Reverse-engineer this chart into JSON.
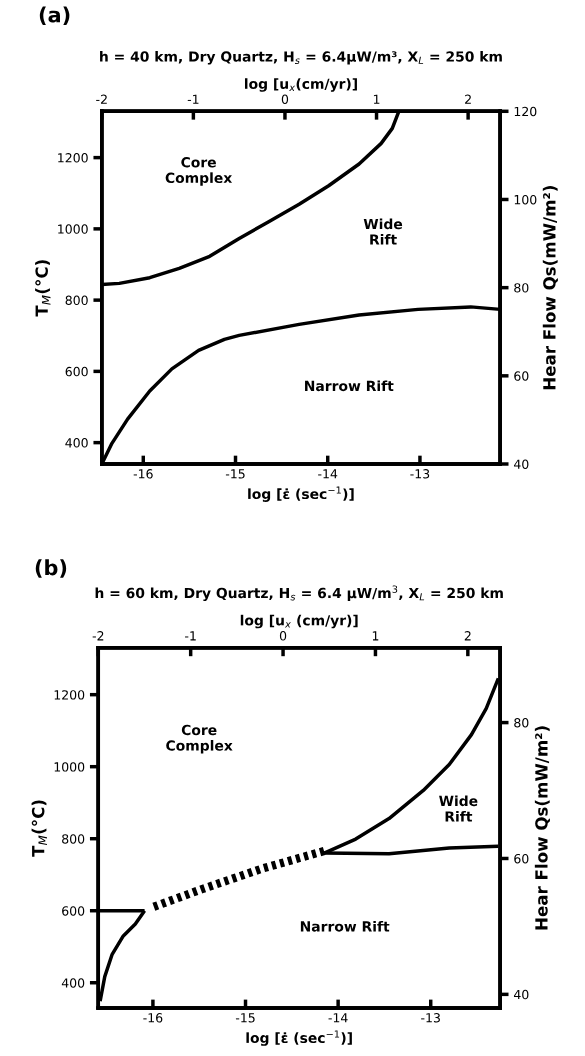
{
  "chart_data": [
    {
      "type": "line",
      "title": "h = 40 km, Dry Quartz, H$_{s}$ = 6.4μW/m³, X$_{L}$ = 250 km",
      "xlabel": "log [ε̇ (sec$^{−1}$)]",
      "x2label": "log [u$_{x}$(cm/yr)]",
      "ylabel": "T$_{M}$(°C)",
      "y2label": "Hear Flow Qs(mW/m²)",
      "xlim": [
        -16.45,
        -12.13
      ],
      "xticks": [
        -16,
        -15,
        -14,
        -13
      ],
      "x2lim": [
        -2,
        2.35
      ],
      "x2ticks": [
        -2,
        -1,
        0,
        1,
        2
      ],
      "ylim": [
        340,
        1330
      ],
      "yticks": [
        400,
        600,
        800,
        1000,
        1200
      ],
      "y2lim": [
        40,
        120
      ],
      "y2ticks": [
        40,
        60,
        80,
        100,
        120
      ],
      "series": [
        {
          "color": "#000000",
          "line_style": "solid",
          "x": [
            -16.45,
            -16.26,
            -15.93,
            -15.61,
            -15.28,
            -14.96,
            -14.64,
            -14.31,
            -13.99,
            -13.66,
            -13.42,
            -13.3,
            -13.23
          ],
          "values": [
            844,
            847,
            863,
            889,
            923,
            973,
            1020,
            1069,
            1121,
            1182,
            1240,
            1282,
            1329
          ]
        },
        {
          "color": "#000000",
          "line_style": "solid",
          "x": [
            -16.45,
            -16.34,
            -16.17,
            -15.93,
            -15.69,
            -15.4,
            -15.12,
            -14.96,
            -14.31,
            -13.66,
            -13.02,
            -12.45,
            -12.13
          ],
          "values": [
            340,
            398,
            466,
            545,
            607,
            659,
            690,
            701,
            732,
            758,
            774,
            781,
            774
          ]
        }
      ],
      "annotations": [
        "(a)",
        "Core\nComplex",
        "Wide\nRift",
        "Narrow Rift"
      ]
    },
    {
      "type": "line",
      "title": "h = 60 km, Dry Quartz, H$_{s}$ = 6.4 μW/m$^{3}$, X$_{L}$ = 250 km",
      "xlabel": "log [ε̇ (sec$^{−1}$)]",
      "x2label": "log [u$_{x}$ (cm/yr)]",
      "ylabel": "T$_{M}$(°C)",
      "y2label": "Hear Flow Qs(mW/m²)",
      "xlim": [
        -16.59,
        -12.25
      ],
      "xticks": [
        -16,
        -15,
        -14,
        -13
      ],
      "x2lim": [
        -2,
        2.35
      ],
      "x2ticks": [
        -2,
        -1,
        0,
        1,
        2
      ],
      "ylim": [
        330,
        1330
      ],
      "yticks": [
        400,
        600,
        800,
        1000,
        1200
      ],
      "y2lim": [
        38,
        91
      ],
      "y2ticks": [
        40,
        60,
        80
      ],
      "series": [
        {
          "color": "#000000",
          "line_style": "solid",
          "x": [
            -16.59,
            -16.09
          ],
          "values": [
            600,
            600
          ]
        },
        {
          "color": "#000000",
          "line_style": "solid",
          "x": [
            -16.57,
            -16.52,
            -16.44,
            -16.32,
            -16.19,
            -16.09
          ],
          "values": [
            349,
            417,
            479,
            530,
            563,
            600
          ]
        },
        {
          "color": "#000000",
          "line_style": "dashed",
          "x": [
            -15.99,
            -15.47,
            -14.82,
            -14.15
          ],
          "values": [
            611,
            660,
            717,
            766
          ]
        },
        {
          "color": "#000000",
          "line_style": "solid",
          "x": [
            -14.15,
            -13.81,
            -13.45,
            -13.08,
            -12.8,
            -12.56,
            -12.4,
            -12.27
          ],
          "values": [
            760,
            799,
            856,
            934,
            1006,
            1089,
            1162,
            1245
          ]
        },
        {
          "color": "#000000",
          "line_style": "solid",
          "x": [
            -14.15,
            -13.45,
            -12.8,
            -12.27
          ],
          "values": [
            760,
            758,
            774,
            779
          ]
        }
      ],
      "annotations": [
        "(b)",
        "Core\nComplex",
        "Wide\nRift",
        "Narrow Rift"
      ]
    }
  ]
}
